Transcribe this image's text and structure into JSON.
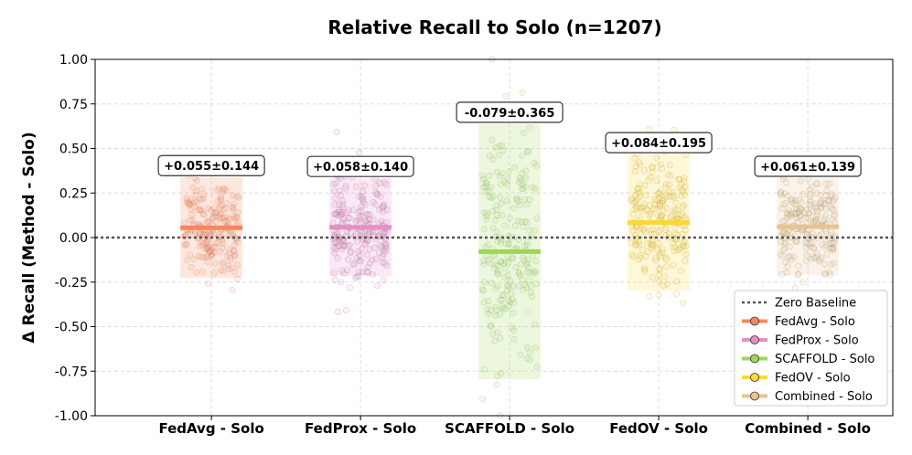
{
  "chart_data": {
    "type": "scatter",
    "title": "Relative Recall to Solo (n=1207)",
    "ylabel": "Δ Recall (Method - Solo)",
    "xlabel": "",
    "ylim": [
      -1.0,
      1.0
    ],
    "yticks": [
      "1.00",
      "0.75",
      "0.50",
      "0.25",
      "0.00",
      "-0.25",
      "-0.50",
      "-0.75",
      "-1.00"
    ],
    "grid": true,
    "legend_position": "lower right",
    "baseline": {
      "value": 0.0,
      "label": "Zero Baseline",
      "color": "#555555"
    },
    "categories": [
      "FedAvg - Solo",
      "FedProx - Solo",
      "SCAFFOLD - Solo",
      "FedOV - Solo",
      "Combined - Solo"
    ],
    "series": [
      {
        "name": "FedAvg - Solo",
        "mean": 0.055,
        "std": 0.144,
        "label": "+0.055±0.144",
        "color": "#f4875f",
        "point_color": "#c8866e"
      },
      {
        "name": "FedProx - Solo",
        "mean": 0.058,
        "std": 0.14,
        "label": "+0.058±0.140",
        "color": "#e58fc7",
        "point_color": "#a06a8c"
      },
      {
        "name": "SCAFFOLD - Solo",
        "mean": -0.079,
        "std": 0.365,
        "label": "-0.079±0.365",
        "color": "#9fd65a",
        "point_color": "#86a866"
      },
      {
        "name": "FedOV - Solo",
        "mean": 0.084,
        "std": 0.195,
        "label": "+0.084±0.195",
        "color": "#fbd73a",
        "point_color": "#b59a36"
      },
      {
        "name": "Combined - Solo",
        "mean": 0.061,
        "std": 0.139,
        "label": "+0.061±0.139",
        "color": "#e6c491",
        "point_color": "#a48b6d"
      }
    ]
  }
}
